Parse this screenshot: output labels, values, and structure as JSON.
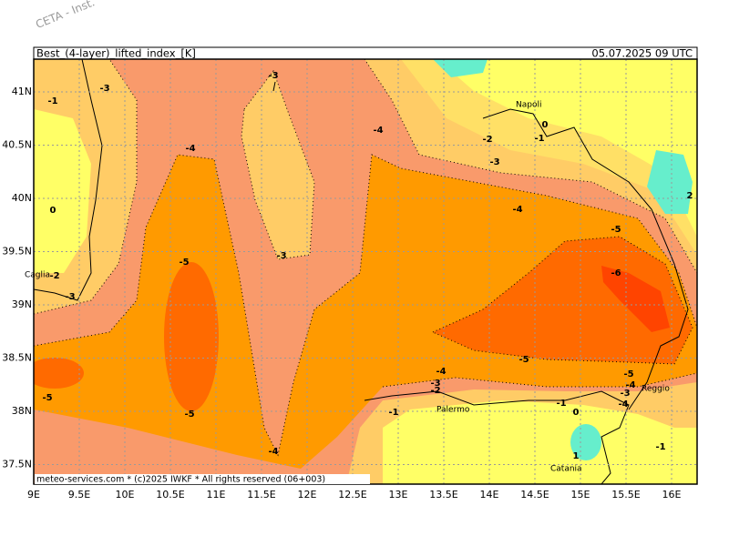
{
  "watermark": "CETA - Inst.",
  "header": {
    "title": "Best_(4-layer)_lifted_index_[K]",
    "time": "05.07.2025 09 UTC"
  },
  "footer": "meteo-services.com * (c)2025 IWKF * All rights reserved (06+003)",
  "x_axis_labels": [
    "9E",
    "9.5E",
    "10E",
    "10.5E",
    "11E",
    "11.5E",
    "12E",
    "12.5E",
    "13E",
    "13.5E",
    "14E",
    "14.5E",
    "15E",
    "15.5E",
    "16E"
  ],
  "y_axis_labels": [
    "41N",
    "40.5N",
    "40N",
    "39.5N",
    "39N",
    "38.5N",
    "38N",
    "37.5N"
  ],
  "cities": [
    "Napoli",
    "Caglia",
    "Palermo",
    "Catania",
    "Reggio"
  ],
  "contour_labels": [
    "-3",
    "-1",
    "-3",
    "-4",
    "-4",
    "0",
    "-2",
    "-1",
    "-3",
    "0",
    "-4",
    "-5",
    "-3",
    "-5",
    "-2",
    "-6",
    "-3",
    "-5",
    "-4",
    "-5",
    "-4",
    "-3",
    "-2",
    "-3",
    "-5",
    "-1",
    "-1",
    "-5",
    "0",
    "-4",
    "-1",
    "-4",
    "1",
    "2"
  ]
}
